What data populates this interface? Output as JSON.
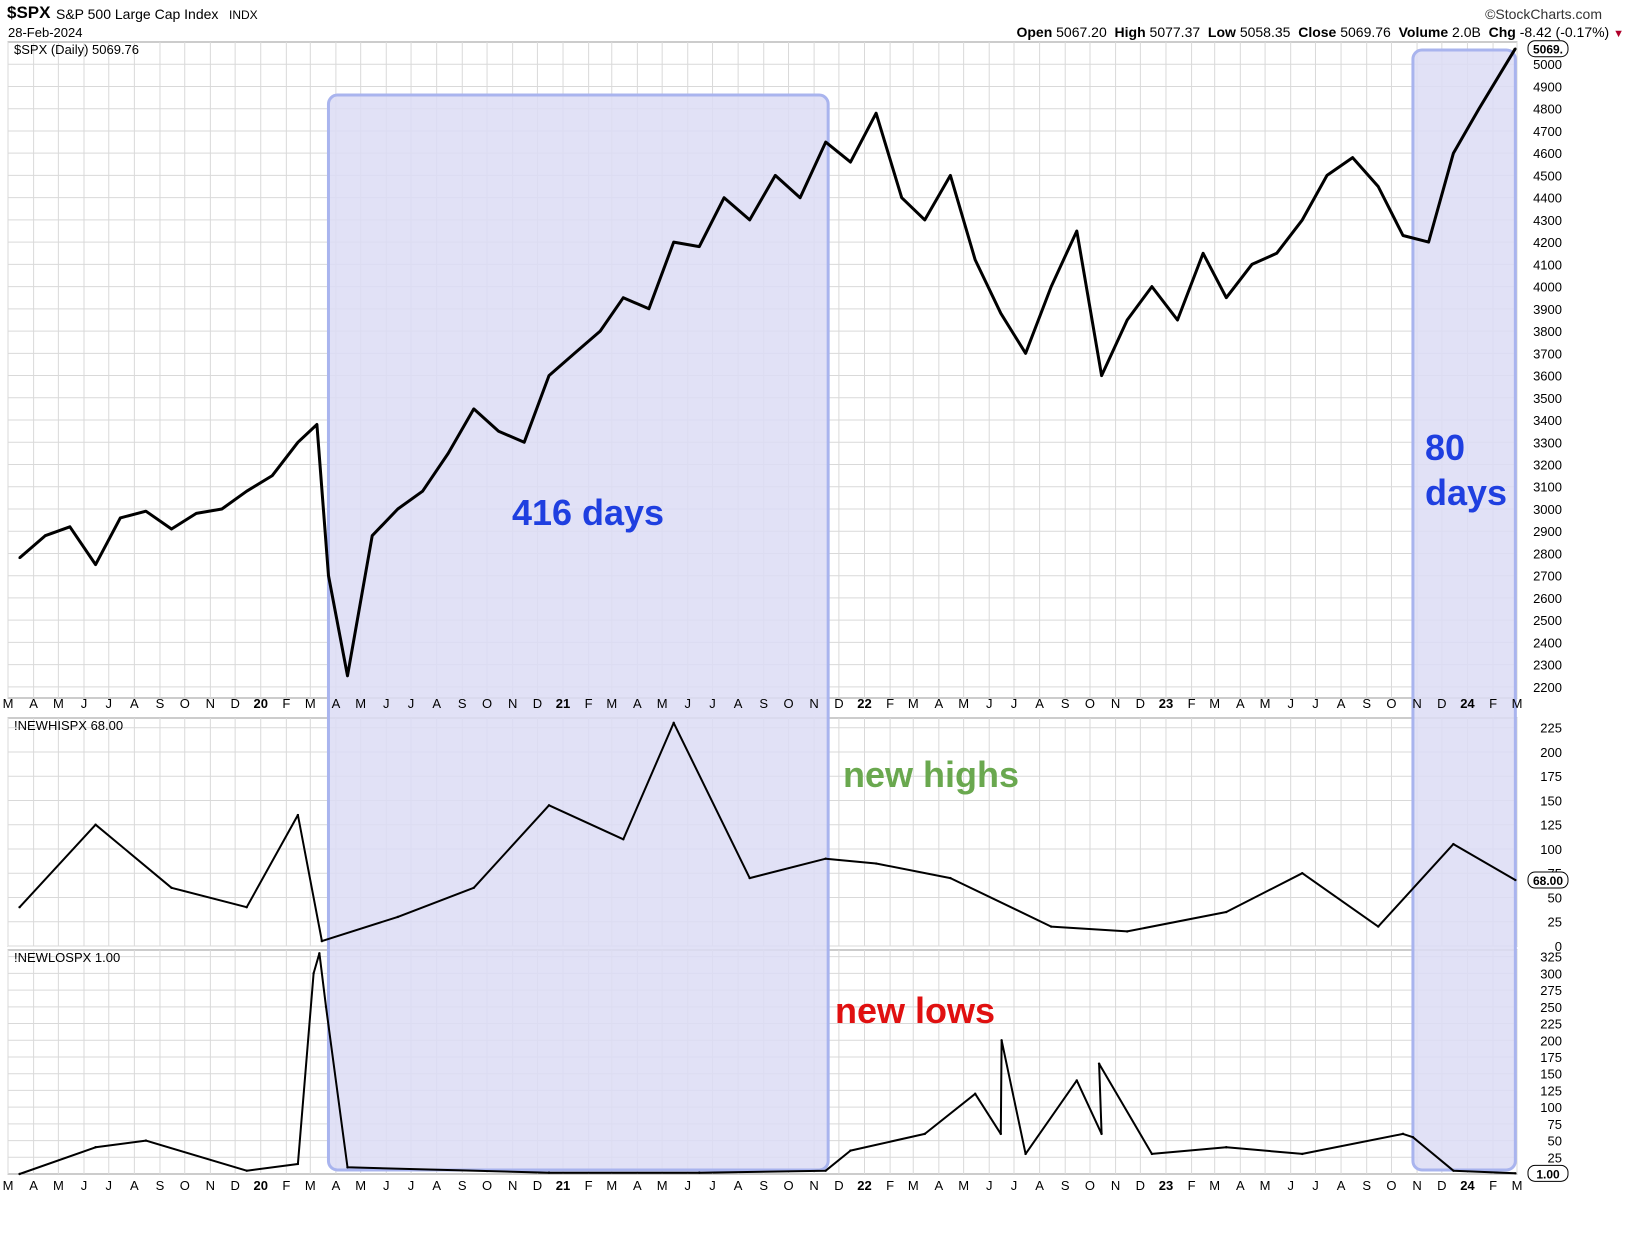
{
  "header": {
    "symbol": "$SPX",
    "name": "S&P 500 Large Cap Index",
    "exchange": "INDX",
    "date": "28-Feb-2024",
    "brand": "©StockCharts.com",
    "open_label": "Open",
    "open": "5067.20",
    "high_label": "High",
    "high": "5077.37",
    "low_label": "Low",
    "low": "5058.35",
    "close_label": "Close",
    "close": "5069.76",
    "volume_label": "Volume",
    "volume": "2.0B",
    "chg_label": "Chg",
    "chg": "-8.42 (-0.17%)"
  },
  "colors": {
    "price_line": "#000000",
    "shade_fill": "#dcdcf4",
    "shade_stroke": "#a9b4ee",
    "annotation_blue": "#1f3fe0",
    "annotation_green": "#6aa84f",
    "annotation_red": "#e01010",
    "grid": "#d9d9d9"
  },
  "chart_data": [
    {
      "type": "line",
      "legend": "$SPX (Daily) 5069.76",
      "last_value_tag": "5069.",
      "ylim": [
        2150,
        5100
      ],
      "yticks": [
        2200,
        2300,
        2400,
        2500,
        2600,
        2700,
        2800,
        2900,
        3000,
        3100,
        3200,
        3300,
        3400,
        3500,
        3600,
        3700,
        3800,
        3900,
        4000,
        4100,
        4200,
        4300,
        4400,
        4500,
        4600,
        4700,
        4800,
        4900,
        5000
      ],
      "x_axis_months": [
        "M",
        "A",
        "M",
        "J",
        "J",
        "A",
        "S",
        "O",
        "N",
        "D",
        "20",
        "F",
        "M",
        "A",
        "M",
        "J",
        "J",
        "A",
        "S",
        "O",
        "N",
        "D",
        "21",
        "F",
        "M",
        "A",
        "M",
        "J",
        "J",
        "A",
        "S",
        "O",
        "N",
        "D",
        "22",
        "F",
        "M",
        "A",
        "M",
        "J",
        "J",
        "A",
        "S",
        "O",
        "N",
        "D",
        "23",
        "F",
        "M",
        "A",
        "M",
        "J",
        "J",
        "A",
        "S",
        "O",
        "N",
        "D",
        "24",
        "F",
        "M"
      ],
      "x": [
        "2019-03",
        "2019-04",
        "2019-05",
        "2019-06",
        "2019-07",
        "2019-08",
        "2019-09",
        "2019-10",
        "2019-11",
        "2019-12",
        "2020-01",
        "2020-02",
        "2020-03-09",
        "2020-03-23",
        "2020-04",
        "2020-05",
        "2020-06",
        "2020-07",
        "2020-08",
        "2020-09",
        "2020-10",
        "2020-11",
        "2020-12",
        "2021-01",
        "2021-02",
        "2021-03",
        "2021-04",
        "2021-05",
        "2021-06",
        "2021-07",
        "2021-08",
        "2021-09",
        "2021-10",
        "2021-11",
        "2021-12",
        "2022-01",
        "2022-02",
        "2022-03",
        "2022-04",
        "2022-05",
        "2022-06",
        "2022-07",
        "2022-08",
        "2022-09",
        "2022-10",
        "2022-11",
        "2022-12",
        "2023-01",
        "2023-02",
        "2023-03",
        "2023-04",
        "2023-05",
        "2023-06",
        "2023-07",
        "2023-08",
        "2023-09",
        "2023-10",
        "2023-11",
        "2023-12",
        "2024-01",
        "2024-02-28"
      ],
      "y": [
        2780,
        2880,
        2920,
        2750,
        2960,
        2990,
        2910,
        2980,
        3000,
        3080,
        3150,
        3300,
        3380,
        2700,
        2250,
        2880,
        3000,
        3080,
        3250,
        3450,
        3350,
        3300,
        3600,
        3700,
        3800,
        3950,
        3900,
        4200,
        4180,
        4400,
        4300,
        4500,
        4400,
        4650,
        4560,
        4780,
        4400,
        4300,
        4500,
        4120,
        3880,
        3700,
        4000,
        4250,
        3600,
        3850,
        4000,
        3850,
        4150,
        3950,
        4100,
        4150,
        4300,
        4500,
        4580,
        4450,
        4230,
        4200,
        4600,
        4800,
        5069.76
      ],
      "shaded_periods": [
        {
          "start": "2020-03-23",
          "end": "2021-11-18",
          "label": "416 days"
        },
        {
          "start": "2023-10-27",
          "end": "2024-02-28",
          "label_line1": "80",
          "label_line2": "days"
        }
      ]
    },
    {
      "type": "line",
      "legend": "!NEWHISPX 68.00",
      "annotation": "new highs",
      "last_value_tag": "68.00",
      "ylim": [
        0,
        235
      ],
      "yticks": [
        0,
        25,
        50,
        75,
        100,
        125,
        150,
        175,
        200,
        225
      ],
      "x": [
        "2019-03",
        "2019-06",
        "2019-09",
        "2019-12",
        "2020-02",
        "2020-03",
        "2020-06",
        "2020-09",
        "2020-12",
        "2021-03",
        "2021-05",
        "2021-08",
        "2021-11",
        "2022-01",
        "2022-04",
        "2022-08",
        "2022-11",
        "2023-03",
        "2023-06",
        "2023-09",
        "2023-12",
        "2024-02-28"
      ],
      "y": [
        40,
        125,
        60,
        40,
        135,
        5,
        30,
        60,
        145,
        110,
        230,
        70,
        90,
        85,
        70,
        20,
        15,
        35,
        75,
        20,
        105,
        68
      ]
    },
    {
      "type": "line",
      "legend": "!NEWLOSPX 1.00",
      "annotation": "new lows",
      "last_value_tag": "1.00",
      "ylim": [
        0,
        335
      ],
      "yticks": [
        25,
        50,
        75,
        100,
        125,
        150,
        175,
        200,
        225,
        250,
        275,
        300,
        325
      ],
      "x": [
        "2019-03",
        "2019-06",
        "2019-08",
        "2019-12",
        "2020-02",
        "2020-03-05",
        "2020-03-12",
        "2020-03-20",
        "2020-04",
        "2020-12",
        "2021-06",
        "2021-11",
        "2021-12",
        "2022-03",
        "2022-05",
        "2022-06",
        "2022-06-16",
        "2022-07",
        "2022-09",
        "2022-10",
        "2022-10-12",
        "2022-12",
        "2023-03",
        "2023-06",
        "2023-10",
        "2023-10-27",
        "2023-12",
        "2024-02-28"
      ],
      "y": [
        0,
        40,
        50,
        5,
        15,
        300,
        330,
        250,
        10,
        2,
        2,
        5,
        35,
        60,
        120,
        60,
        200,
        30,
        140,
        60,
        165,
        30,
        40,
        30,
        60,
        55,
        5,
        1
      ]
    }
  ]
}
